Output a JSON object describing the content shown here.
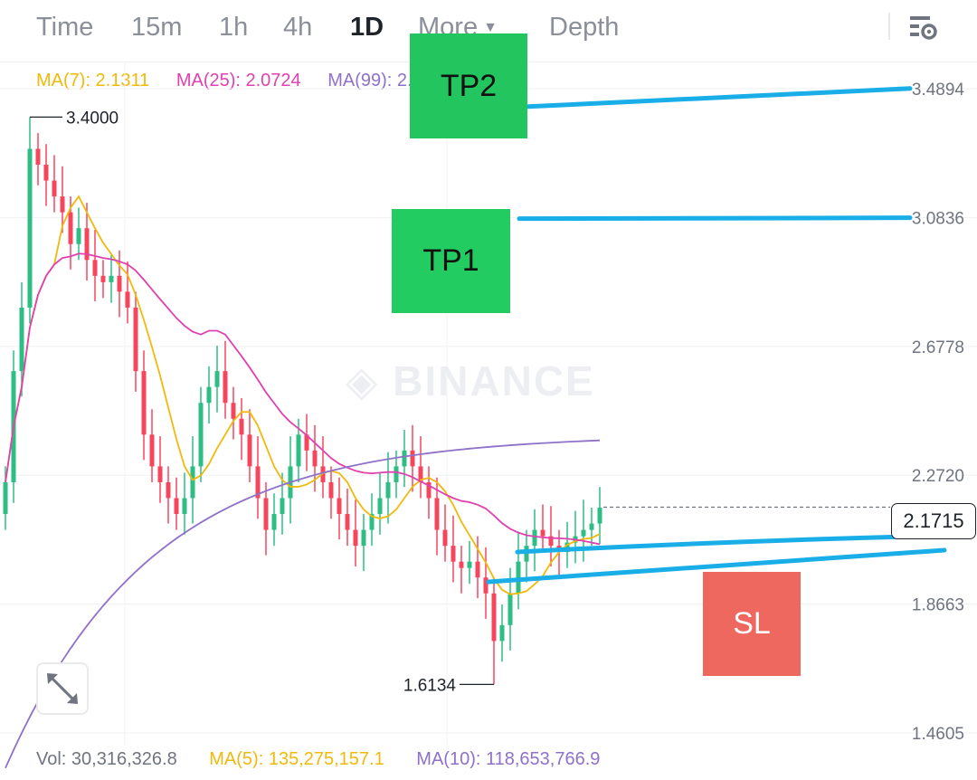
{
  "tabs": [
    {
      "label": "Time",
      "active": false
    },
    {
      "label": "15m",
      "active": false
    },
    {
      "label": "1h",
      "active": false
    },
    {
      "label": "4h",
      "active": false
    },
    {
      "label": "1D",
      "active": true
    },
    {
      "label": "More",
      "active": false
    },
    {
      "label": "Depth",
      "active": false
    }
  ],
  "icons": {
    "settings": "chart-settings-icon",
    "more_caret": "caret-down-icon",
    "expand": "expand-arrows-icon",
    "watermark_logo": "binance-logo-icon"
  },
  "indicators": {
    "ma7": "MA(7): 2.1311",
    "ma25": "MA(25): 2.0724",
    "ma99": "MA(99): 2.4"
  },
  "volume": {
    "vol": "Vol: 30,316,326.8",
    "ma5": "MA(5): 135,275,157.1",
    "ma10": "MA(10): 118,653,766.9"
  },
  "watermark": "BINANCE",
  "annotations": {
    "tp2": "TP2",
    "tp1": "TP1",
    "sl": "SL"
  },
  "colors": {
    "up": "#2ebd85",
    "down": "#f6465d",
    "ma7": "#f0b90b",
    "ma25": "#e040b0",
    "ma99": "#8f71c9",
    "drawn_line": "#19aee8",
    "tp_box": "#22c55e",
    "sl_box": "#ee6860"
  },
  "chart_data": {
    "type": "candlestick",
    "interval": "1D",
    "y_ticks": [
      "3.4894",
      "3.0836",
      "2.6778",
      "2.2720",
      "1.8663",
      "1.4605"
    ],
    "ylim": [
      1.4605,
      3.4894
    ],
    "current_price": "2.1715",
    "high_label": "3.4000",
    "low_label": "1.6134",
    "trend_levels": {
      "tp2": 3.49,
      "tp1": 3.08,
      "support_upper": 2.05,
      "support_lower": 1.99
    },
    "grid": true,
    "closes": [
      2.25,
      2.6,
      2.8,
      3.3,
      3.25,
      3.2,
      3.15,
      3.1,
      3.0,
      3.05,
      2.95,
      2.9,
      2.88,
      2.9,
      2.85,
      2.8,
      2.6,
      2.4,
      2.3,
      2.25,
      2.2,
      2.15,
      2.2,
      2.3,
      2.5,
      2.55,
      2.6,
      2.5,
      2.45,
      2.4,
      2.3,
      2.2,
      2.1,
      2.15,
      2.2,
      2.3,
      2.4,
      2.35,
      2.3,
      2.25,
      2.2,
      2.15,
      2.1,
      2.05,
      2.1,
      2.15,
      2.2,
      2.25,
      2.3,
      2.35,
      2.3,
      2.25,
      2.2,
      2.1,
      2.05,
      2.0,
      1.98,
      2.0,
      1.95,
      1.9,
      1.75,
      1.8,
      1.9,
      2.0,
      2.05,
      2.1,
      2.08,
      2.05,
      2.03,
      2.06,
      2.08,
      2.1,
      2.12,
      2.17
    ]
  }
}
